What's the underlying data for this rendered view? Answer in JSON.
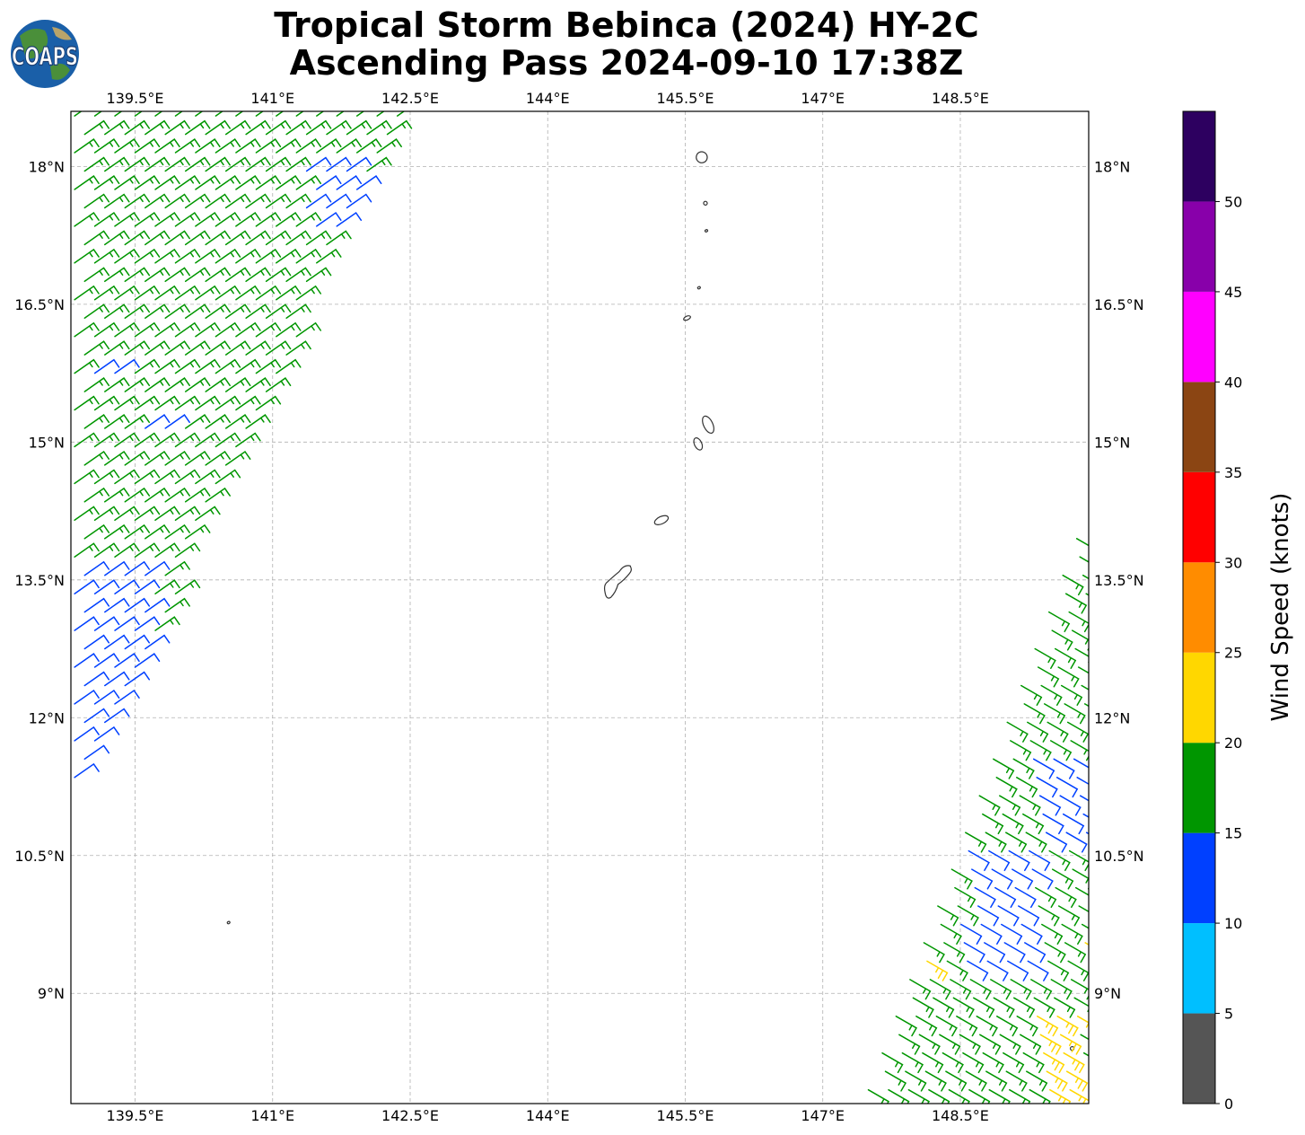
{
  "title": {
    "line1": "Tropical Storm Bebinca (2024) HY-2C",
    "line2": "Ascending Pass 2024-09-10 17:38Z"
  },
  "logo": {
    "text": "COAPS"
  },
  "map": {
    "lon_range": [
      138.8,
      149.9
    ],
    "lat_range": [
      7.8,
      18.6
    ],
    "lon_ticks": [
      {
        "value": 139.5,
        "label": "139.5°E"
      },
      {
        "value": 141.0,
        "label": "141°E"
      },
      {
        "value": 142.5,
        "label": "142.5°E"
      },
      {
        "value": 144.0,
        "label": "144°E"
      },
      {
        "value": 145.5,
        "label": "145.5°E"
      },
      {
        "value": 147.0,
        "label": "147°E"
      },
      {
        "value": 148.5,
        "label": "148.5°E"
      }
    ],
    "lat_ticks": [
      {
        "value": 18.0,
        "label": "18°N"
      },
      {
        "value": 16.5,
        "label": "16.5°N"
      },
      {
        "value": 15.0,
        "label": "15°N"
      },
      {
        "value": 13.5,
        "label": "13.5°N"
      },
      {
        "value": 12.0,
        "label": "12°N"
      },
      {
        "value": 10.5,
        "label": "10.5°N"
      },
      {
        "value": 9.0,
        "label": "9°N"
      }
    ],
    "grid": true,
    "islands": [
      {
        "name": "farallon-de-pajaros-island",
        "lon": 145.68,
        "lat": 18.1,
        "rx": 0.06,
        "ry": 0.06
      },
      {
        "name": "maug-island",
        "lon": 145.72,
        "lat": 17.6,
        "rx": 0.02,
        "ry": 0.02
      },
      {
        "name": "asuncion-island",
        "lon": 145.73,
        "lat": 17.3,
        "rx": 0.015,
        "ry": 0.01
      },
      {
        "name": "agrihan-island",
        "lon": 145.65,
        "lat": 16.68,
        "rx": 0.015,
        "ry": 0.01
      },
      {
        "name": "pagan-island",
        "lon": 145.52,
        "lat": 16.35,
        "rx": 0.04,
        "ry": 0.02
      },
      {
        "name": "saipan-island",
        "lon": 145.75,
        "lat": 15.19,
        "rx": 0.05,
        "ry": 0.1
      },
      {
        "name": "tinian-island",
        "lon": 145.64,
        "lat": 14.98,
        "rx": 0.04,
        "ry": 0.07
      },
      {
        "name": "rota-island",
        "lon": 145.24,
        "lat": 14.15,
        "rx": 0.08,
        "ry": 0.04
      },
      {
        "name": "guam-island",
        "lon": 144.78,
        "lat": 13.45,
        "rx": 0.14,
        "ry": 0.2
      },
      {
        "name": "fais-islet",
        "lon": 140.52,
        "lat": 9.77,
        "rx": 0.01,
        "ry": 0.01
      },
      {
        "name": "ulithi-islet",
        "lon": 149.72,
        "lat": 8.4,
        "rx": 0.02,
        "ry": 0.02
      }
    ]
  },
  "colorbar": {
    "title": "Wind Speed (knots)",
    "ticks": [
      "0",
      "5",
      "10",
      "15",
      "20",
      "25",
      "30",
      "35",
      "40",
      "45",
      "50"
    ],
    "bins": [
      {
        "range": [
          0,
          5
        ],
        "color": "#555555"
      },
      {
        "range": [
          5,
          10
        ],
        "color": "#00bfff"
      },
      {
        "range": [
          10,
          15
        ],
        "color": "#0040ff"
      },
      {
        "range": [
          15,
          20
        ],
        "color": "#009600"
      },
      {
        "range": [
          20,
          25
        ],
        "color": "#ffd700"
      },
      {
        "range": [
          25,
          30
        ],
        "color": "#ff8c00"
      },
      {
        "range": [
          30,
          35
        ],
        "color": "#ff0000"
      },
      {
        "range": [
          35,
          40
        ],
        "color": "#8b4513"
      },
      {
        "range": [
          40,
          45
        ],
        "color": "#ff00ff"
      },
      {
        "range": [
          45,
          50
        ],
        "color": "#8800aa"
      },
      {
        "range": [
          50,
          55
        ],
        "color": "#2d0060"
      }
    ]
  },
  "swaths": [
    {
      "name": "west-swath",
      "bounds": [
        {
          "lat": 18.6,
          "lon_min": 138.8,
          "lon_max": 142.45
        },
        {
          "lat": 10.9,
          "lon_min": 138.8,
          "lon_max": 138.8
        }
      ],
      "wind_dir_deg": 55,
      "speed_regions": [
        {
          "lat_min": 17.2,
          "lat_max": 18.0,
          "lon_min": 141.3,
          "lon_max": 142.0,
          "speed": 13
        },
        {
          "lat_min": 15.7,
          "lat_max": 15.9,
          "lon_min": 138.9,
          "lon_max": 139.4,
          "speed": 13
        },
        {
          "lat_min": 15.1,
          "lat_max": 15.3,
          "lon_min": 139.5,
          "lon_max": 140.0,
          "speed": 13
        },
        {
          "lat_min": 10.9,
          "lat_max": 13.6,
          "lon_min": 138.8,
          "lon_max": 139.7,
          "speed": 13
        },
        {
          "lat_min": 12.3,
          "lat_max": 12.9,
          "lon_min": 139.9,
          "lon_max": 140.2,
          "speed": 13
        }
      ],
      "default_speed": 17
    },
    {
      "name": "east-swath",
      "bounds": [
        {
          "lat": 14.4,
          "lon_min": 149.9,
          "lon_max": 149.9
        },
        {
          "lat": 7.8,
          "lon_min": 147.4,
          "lon_max": 149.9
        }
      ],
      "wind_dir_deg": 120,
      "speed_regions": [
        {
          "lat_min": 9.2,
          "lat_max": 10.6,
          "lon_min": 148.5,
          "lon_max": 149.3,
          "speed": 13
        },
        {
          "lat_min": 10.6,
          "lat_max": 11.6,
          "lon_min": 149.3,
          "lon_max": 149.9,
          "speed": 13
        },
        {
          "lat_min": 7.8,
          "lat_max": 8.8,
          "lon_min": 149.3,
          "lon_max": 149.8,
          "speed": 22
        },
        {
          "lat_min": 9.2,
          "lat_max": 9.6,
          "lon_min": 149.8,
          "lon_max": 149.9,
          "speed": 22
        },
        {
          "lat_min": 9.2,
          "lat_max": 9.5,
          "lon_min": 148.05,
          "lon_max": 148.25,
          "speed": 22
        }
      ],
      "default_speed": 17
    }
  ]
}
